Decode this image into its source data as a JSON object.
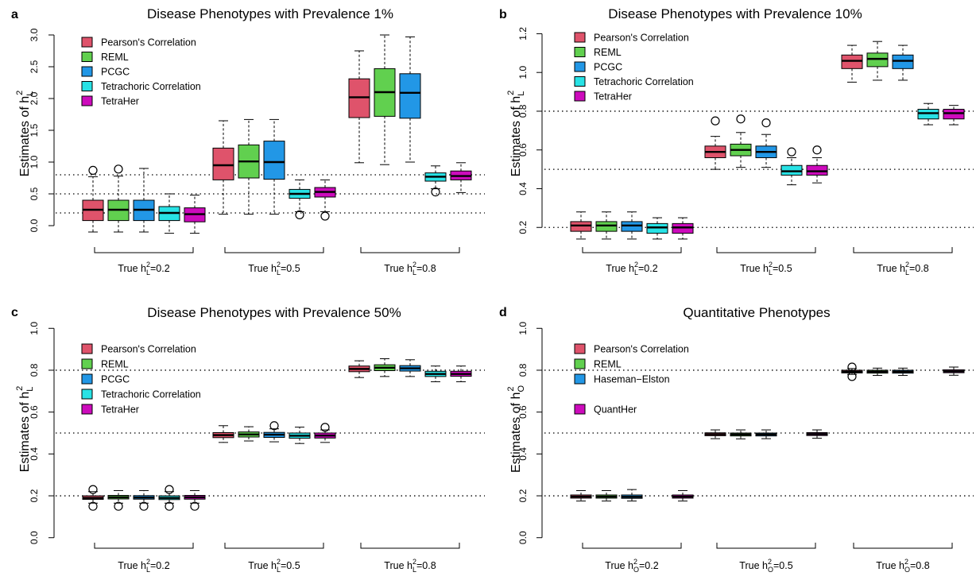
{
  "chart_data": [
    {
      "panel": "a",
      "type": "box",
      "title": "Disease Phenotypes with Prevalence 1%",
      "ylabel": "Estimates of h2L",
      "ylabel_main": "Estimates of h",
      "ylabel_sup": "2",
      "ylabel_sub": "L",
      "ylim": [
        -0.15,
        3.05
      ],
      "yticks": [
        0.0,
        0.5,
        1.0,
        1.5,
        2.0,
        2.5,
        3.0
      ],
      "ytick_labels": [
        "0.0",
        "0.5",
        "1.0",
        "1.5",
        "2.0",
        "2.5",
        "3.0"
      ],
      "reference_lines": [
        0.2,
        0.5,
        0.8
      ],
      "groups": [
        {
          "label": "True h2L=0.2",
          "pre": "True h",
          "sup": "2",
          "sub": "L",
          "post": "=0.2"
        },
        {
          "label": "True h2L=0.5",
          "pre": "True h",
          "sup": "2",
          "sub": "L",
          "post": "=0.5"
        },
        {
          "label": "True h2L=0.8",
          "pre": "True h",
          "sup": "2",
          "sub": "L",
          "post": "=0.8"
        }
      ],
      "series": [
        {
          "name": "Pearson's Correlation",
          "color": "#DF536B"
        },
        {
          "name": "REML",
          "color": "#61D04F"
        },
        {
          "name": "PCGC",
          "color": "#2297E6"
        },
        {
          "name": "Tetrachoric Correlation",
          "color": "#28E2E5"
        },
        {
          "name": "TetraHer",
          "color": "#CD0BBC"
        }
      ],
      "boxes": [
        [
          {
            "min": -0.1,
            "q1": 0.08,
            "median": 0.25,
            "q3": 0.4,
            "max": 0.77,
            "outliers": [
              0.87
            ]
          },
          {
            "min": -0.1,
            "q1": 0.08,
            "median": 0.25,
            "q3": 0.4,
            "max": 0.78,
            "outliers": [
              0.89
            ]
          },
          {
            "min": -0.1,
            "q1": 0.08,
            "median": 0.25,
            "q3": 0.4,
            "max": 0.9,
            "outliers": []
          },
          {
            "min": -0.12,
            "q1": 0.08,
            "median": 0.2,
            "q3": 0.3,
            "max": 0.5,
            "outliers": []
          },
          {
            "min": -0.12,
            "q1": 0.06,
            "median": 0.18,
            "q3": 0.28,
            "max": 0.48,
            "outliers": []
          }
        ],
        [
          {
            "min": 0.18,
            "q1": 0.72,
            "median": 0.95,
            "q3": 1.22,
            "max": 1.65,
            "outliers": []
          },
          {
            "min": 0.18,
            "q1": 0.75,
            "median": 1.01,
            "q3": 1.27,
            "max": 1.67,
            "outliers": []
          },
          {
            "min": 0.18,
            "q1": 0.73,
            "median": 1.0,
            "q3": 1.33,
            "max": 1.67,
            "outliers": []
          },
          {
            "min": 0.22,
            "q1": 0.43,
            "median": 0.5,
            "q3": 0.57,
            "max": 0.72,
            "outliers": [
              0.17
            ]
          },
          {
            "min": 0.22,
            "q1": 0.45,
            "median": 0.53,
            "q3": 0.6,
            "max": 0.72,
            "outliers": [
              0.15
            ]
          }
        ],
        [
          {
            "min": 0.99,
            "q1": 1.7,
            "median": 2.02,
            "q3": 2.31,
            "max": 2.75,
            "outliers": []
          },
          {
            "min": 0.96,
            "q1": 1.72,
            "median": 2.1,
            "q3": 2.47,
            "max": 3.0,
            "outliers": []
          },
          {
            "min": 1.0,
            "q1": 1.69,
            "median": 2.09,
            "q3": 2.39,
            "max": 2.97,
            "outliers": []
          },
          {
            "min": 0.58,
            "q1": 0.7,
            "median": 0.77,
            "q3": 0.83,
            "max": 0.94,
            "outliers": [
              0.53
            ]
          },
          {
            "min": 0.52,
            "q1": 0.72,
            "median": 0.78,
            "q3": 0.86,
            "max": 0.99,
            "outliers": []
          }
        ]
      ],
      "legend_position": "top-left"
    },
    {
      "panel": "b",
      "type": "box",
      "title": "Disease Phenotypes with Prevalence 10%",
      "ylabel": "Estimates of h2L",
      "ylabel_main": "Estimates of h",
      "ylabel_sup": "2",
      "ylabel_sub": "L",
      "ylim": [
        0.16,
        1.21
      ],
      "yticks": [
        0.2,
        0.4,
        0.6,
        0.8,
        1.0,
        1.2
      ],
      "ytick_labels": [
        "0.2",
        "0.4",
        "0.6",
        "0.8",
        "1.0",
        "1.2"
      ],
      "reference_lines": [
        0.2,
        0.5,
        0.8
      ],
      "groups": [
        {
          "label": "True h2L=0.2",
          "pre": "True h",
          "sup": "2",
          "sub": "L",
          "post": "=0.2"
        },
        {
          "label": "True h2L=0.5",
          "pre": "True h",
          "sup": "2",
          "sub": "L",
          "post": "=0.5"
        },
        {
          "label": "True h2L=0.8",
          "pre": "True h",
          "sup": "2",
          "sub": "L",
          "post": "=0.8"
        }
      ],
      "series": [
        {
          "name": "Pearson's Correlation",
          "color": "#DF536B"
        },
        {
          "name": "REML",
          "color": "#61D04F"
        },
        {
          "name": "PCGC",
          "color": "#2297E6"
        },
        {
          "name": "Tetrachoric Correlation",
          "color": "#28E2E5"
        },
        {
          "name": "TetraHer",
          "color": "#CD0BBC"
        }
      ],
      "boxes": [
        [
          {
            "min": 0.14,
            "q1": 0.18,
            "median": 0.21,
            "q3": 0.23,
            "max": 0.28,
            "outliers": []
          },
          {
            "min": 0.14,
            "q1": 0.18,
            "median": 0.21,
            "q3": 0.23,
            "max": 0.28,
            "outliers": []
          },
          {
            "min": 0.14,
            "q1": 0.18,
            "median": 0.21,
            "q3": 0.23,
            "max": 0.28,
            "outliers": []
          },
          {
            "min": 0.14,
            "q1": 0.17,
            "median": 0.2,
            "q3": 0.22,
            "max": 0.25,
            "outliers": []
          },
          {
            "min": 0.14,
            "q1": 0.17,
            "median": 0.2,
            "q3": 0.22,
            "max": 0.25,
            "outliers": []
          }
        ],
        [
          {
            "min": 0.5,
            "q1": 0.56,
            "median": 0.59,
            "q3": 0.62,
            "max": 0.67,
            "outliers": [
              0.75
            ]
          },
          {
            "min": 0.51,
            "q1": 0.57,
            "median": 0.6,
            "q3": 0.63,
            "max": 0.69,
            "outliers": [
              0.76
            ]
          },
          {
            "min": 0.51,
            "q1": 0.56,
            "median": 0.59,
            "q3": 0.62,
            "max": 0.68,
            "outliers": [
              0.74
            ]
          },
          {
            "min": 0.42,
            "q1": 0.47,
            "median": 0.49,
            "q3": 0.52,
            "max": 0.56,
            "outliers": [
              0.59
            ]
          },
          {
            "min": 0.43,
            "q1": 0.47,
            "median": 0.49,
            "q3": 0.52,
            "max": 0.56,
            "outliers": [
              0.6
            ]
          }
        ],
        [
          {
            "min": 0.95,
            "q1": 1.02,
            "median": 1.06,
            "q3": 1.09,
            "max": 1.14,
            "outliers": []
          },
          {
            "min": 0.96,
            "q1": 1.03,
            "median": 1.07,
            "q3": 1.1,
            "max": 1.16,
            "outliers": []
          },
          {
            "min": 0.96,
            "q1": 1.02,
            "median": 1.06,
            "q3": 1.09,
            "max": 1.14,
            "outliers": []
          },
          {
            "min": 0.73,
            "q1": 0.76,
            "median": 0.79,
            "q3": 0.81,
            "max": 0.84,
            "outliers": []
          },
          {
            "min": 0.73,
            "q1": 0.76,
            "median": 0.79,
            "q3": 0.81,
            "max": 0.83,
            "outliers": []
          }
        ]
      ],
      "legend_position": "top-left"
    },
    {
      "panel": "c",
      "type": "box",
      "title": "Disease Phenotypes with Prevalence 50%",
      "ylabel": "Estimates of h2L",
      "ylabel_main": "Estimates of h",
      "ylabel_sup": "2",
      "ylabel_sub": "L",
      "ylim": [
        -0.02,
        1.02
      ],
      "yticks": [
        0.0,
        0.2,
        0.4,
        0.6,
        0.8,
        1.0
      ],
      "ytick_labels": [
        "0.0",
        "0.2",
        "0.4",
        "0.6",
        "0.8",
        "1.0"
      ],
      "reference_lines": [
        0.2,
        0.5,
        0.8
      ],
      "groups": [
        {
          "label": "True h2L=0.2",
          "pre": "True h",
          "sup": "2",
          "sub": "L",
          "post": "=0.2"
        },
        {
          "label": "True h2L=0.5",
          "pre": "True h",
          "sup": "2",
          "sub": "L",
          "post": "=0.5"
        },
        {
          "label": "True h2L=0.8",
          "pre": "True h",
          "sup": "2",
          "sub": "L",
          "post": "=0.8"
        }
      ],
      "series": [
        {
          "name": "Pearson's Correlation",
          "color": "#DF536B"
        },
        {
          "name": "REML",
          "color": "#61D04F"
        },
        {
          "name": "PCGC",
          "color": "#2297E6"
        },
        {
          "name": "Tetrachoric Correlation",
          "color": "#28E2E5"
        },
        {
          "name": "TetraHer",
          "color": "#CD0BBC"
        }
      ],
      "boxes": [
        [
          {
            "min": 0.165,
            "q1": 0.183,
            "median": 0.19,
            "q3": 0.2,
            "max": 0.22,
            "outliers": [
              0.15,
              0.23
            ]
          },
          {
            "min": 0.165,
            "q1": 0.185,
            "median": 0.193,
            "q3": 0.202,
            "max": 0.225,
            "outliers": [
              0.15
            ]
          },
          {
            "min": 0.165,
            "q1": 0.184,
            "median": 0.192,
            "q3": 0.201,
            "max": 0.225,
            "outliers": [
              0.15
            ]
          },
          {
            "min": 0.165,
            "q1": 0.182,
            "median": 0.19,
            "q3": 0.2,
            "max": 0.22,
            "outliers": [
              0.15,
              0.23
            ]
          },
          {
            "min": 0.165,
            "q1": 0.184,
            "median": 0.193,
            "q3": 0.202,
            "max": 0.225,
            "outliers": [
              0.15
            ]
          }
        ],
        [
          {
            "min": 0.455,
            "q1": 0.478,
            "median": 0.49,
            "q3": 0.502,
            "max": 0.535,
            "outliers": []
          },
          {
            "min": 0.462,
            "q1": 0.481,
            "median": 0.493,
            "q3": 0.505,
            "max": 0.53,
            "outliers": []
          },
          {
            "min": 0.458,
            "q1": 0.479,
            "median": 0.492,
            "q3": 0.503,
            "max": 0.52,
            "outliers": [
              0.535
            ]
          },
          {
            "min": 0.45,
            "q1": 0.475,
            "median": 0.487,
            "q3": 0.5,
            "max": 0.528,
            "outliers": []
          },
          {
            "min": 0.455,
            "q1": 0.476,
            "median": 0.488,
            "q3": 0.5,
            "max": 0.515,
            "outliers": [
              0.527
            ]
          }
        ],
        [
          {
            "min": 0.765,
            "q1": 0.793,
            "median": 0.806,
            "q3": 0.82,
            "max": 0.845,
            "outliers": []
          },
          {
            "min": 0.77,
            "q1": 0.798,
            "median": 0.812,
            "q3": 0.826,
            "max": 0.855,
            "outliers": []
          },
          {
            "min": 0.77,
            "q1": 0.796,
            "median": 0.809,
            "q3": 0.822,
            "max": 0.85,
            "outliers": []
          },
          {
            "min": 0.745,
            "q1": 0.77,
            "median": 0.782,
            "q3": 0.795,
            "max": 0.82,
            "outliers": []
          },
          {
            "min": 0.745,
            "q1": 0.771,
            "median": 0.782,
            "q3": 0.795,
            "max": 0.82,
            "outliers": []
          }
        ]
      ],
      "legend_position": "top-left"
    },
    {
      "panel": "d",
      "type": "box",
      "title": "Quantitative Phenotypes",
      "ylabel": "Estimates of h2O",
      "ylabel_main": "Estimates of h",
      "ylabel_sup": "2",
      "ylabel_sub": "O",
      "ylim": [
        -0.02,
        1.02
      ],
      "yticks": [
        0.0,
        0.2,
        0.4,
        0.6,
        0.8,
        1.0
      ],
      "ytick_labels": [
        "0.0",
        "0.2",
        "0.4",
        "0.6",
        "0.8",
        "1.0"
      ],
      "reference_lines": [
        0.2,
        0.5,
        0.8
      ],
      "groups": [
        {
          "label": "True h2O=0.2",
          "pre": "True h",
          "sup": "2",
          "sub": "O",
          "post": "=0.2"
        },
        {
          "label": "True h2O=0.5",
          "pre": "True h",
          "sup": "2",
          "sub": "O",
          "post": "=0.5"
        },
        {
          "label": "True h2O=0.8",
          "pre": "True h",
          "sup": "2",
          "sub": "O",
          "post": "=0.8"
        }
      ],
      "series": [
        {
          "name": "Pearson's Correlation",
          "color": "#DF536B"
        },
        {
          "name": "REML",
          "color": "#61D04F"
        },
        {
          "name": "Haseman−Elston",
          "color": "#2297E6"
        },
        {
          "name": "",
          "color": ""
        },
        {
          "name": "QuantHer",
          "color": "#CD0BBC"
        }
      ],
      "boxes": [
        [
          {
            "min": 0.175,
            "q1": 0.189,
            "median": 0.196,
            "q3": 0.204,
            "max": 0.225,
            "outliers": []
          },
          {
            "min": 0.175,
            "q1": 0.189,
            "median": 0.196,
            "q3": 0.204,
            "max": 0.225,
            "outliers": []
          },
          {
            "min": 0.175,
            "q1": 0.188,
            "median": 0.195,
            "q3": 0.204,
            "max": 0.23,
            "outliers": []
          },
          null,
          {
            "min": 0.175,
            "q1": 0.189,
            "median": 0.196,
            "q3": 0.204,
            "max": 0.225,
            "outliers": []
          }
        ],
        [
          {
            "min": 0.473,
            "q1": 0.487,
            "median": 0.494,
            "q3": 0.501,
            "max": 0.515,
            "outliers": []
          },
          {
            "min": 0.472,
            "q1": 0.486,
            "median": 0.493,
            "q3": 0.5,
            "max": 0.515,
            "outliers": []
          },
          {
            "min": 0.473,
            "q1": 0.486,
            "median": 0.493,
            "q3": 0.5,
            "max": 0.515,
            "outliers": []
          },
          null,
          {
            "min": 0.475,
            "q1": 0.488,
            "median": 0.495,
            "q3": 0.502,
            "max": 0.515,
            "outliers": []
          }
        ],
        [
          {
            "min": 0.78,
            "q1": 0.787,
            "median": 0.793,
            "q3": 0.8,
            "max": 0.808,
            "outliers": [
              0.77,
              0.815
            ]
          },
          {
            "min": 0.775,
            "q1": 0.786,
            "median": 0.793,
            "q3": 0.8,
            "max": 0.81,
            "outliers": []
          },
          {
            "min": 0.775,
            "q1": 0.786,
            "median": 0.793,
            "q3": 0.8,
            "max": 0.81,
            "outliers": []
          },
          null,
          {
            "min": 0.776,
            "q1": 0.788,
            "median": 0.795,
            "q3": 0.802,
            "max": 0.815,
            "outliers": []
          }
        ]
      ],
      "legend_position": "top-left"
    }
  ]
}
